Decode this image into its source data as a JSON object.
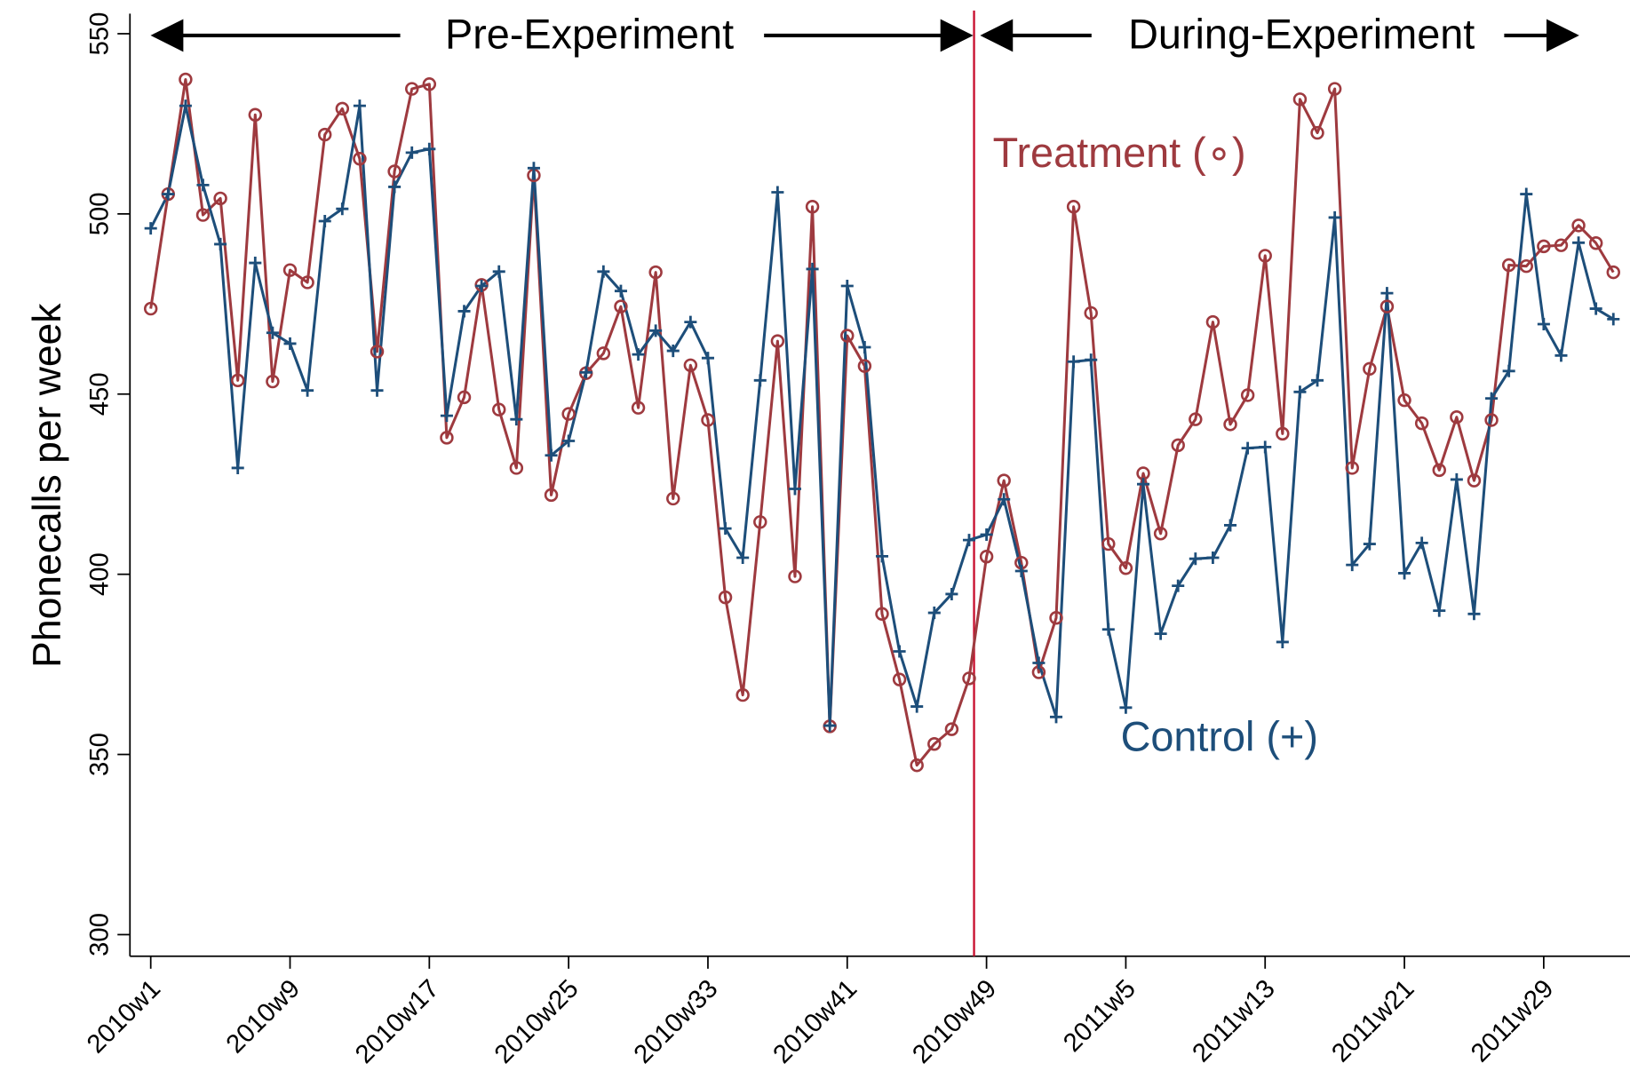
{
  "chart_data": {
    "type": "line",
    "y_label": "Phonecalls per week",
    "annotations": [
      "Pre-Experiment",
      "During-Experiment"
    ],
    "categories": [
      "2010w1",
      null,
      null,
      null,
      null,
      null,
      null,
      null,
      "2010w9",
      null,
      null,
      null,
      null,
      null,
      null,
      null,
      "2010w17",
      null,
      null,
      null,
      null,
      null,
      null,
      null,
      "2010w25",
      null,
      null,
      null,
      null,
      null,
      null,
      null,
      "2010w33",
      null,
      null,
      null,
      null,
      null,
      null,
      null,
      "2010w41",
      null,
      null,
      null,
      null,
      null,
      null,
      null,
      "2010w49",
      null,
      null,
      null,
      null,
      null,
      null,
      null,
      "2011w5",
      null,
      null,
      null,
      null,
      null,
      null,
      null,
      "2011w13",
      null,
      null,
      null,
      null,
      null,
      null,
      null,
      "2011w21",
      null,
      null,
      null,
      null,
      null,
      null,
      null,
      "2011w29",
      null,
      null,
      null,
      null
    ],
    "series": [
      {
        "name": "Treatment (∘)",
        "color": "#9e3a3f",
        "marker": "circle",
        "values": [
          473.7,
          505.5,
          537.3,
          499.7,
          504.3,
          453.8,
          527.5,
          453.5,
          484.4,
          481.0,
          522.0,
          529.2,
          515.3,
          461.8,
          511.8,
          534.7,
          536.0,
          437.9,
          449.1,
          480.3,
          445.7,
          429.5,
          510.7,
          422.0,
          444.5,
          455.8,
          461.3,
          474.3,
          446.2,
          483.8,
          421.0,
          458.0,
          442.8,
          393.6,
          366.5,
          414.5,
          464.7,
          399.4,
          502.0,
          357.8,
          466.2,
          457.8,
          389.0,
          370.8,
          347.0,
          352.9,
          357.0,
          371.1,
          404.9,
          426.0,
          403.2,
          372.8,
          387.9,
          502.0,
          472.5,
          408.4,
          401.7,
          428.0,
          411.3,
          435.8,
          443.0,
          470.0,
          441.6,
          449.7,
          488.4,
          439.0,
          531.8,
          522.5,
          534.7,
          429.5,
          457.0,
          474.3,
          448.3,
          441.9,
          428.9,
          443.6,
          426.0,
          442.8,
          485.8,
          485.5,
          491.0,
          491.3,
          496.8,
          491.9,
          483.8
        ]
      },
      {
        "name": "Control (+)",
        "color": "#1d4e7a",
        "marker": "plus",
        "values": [
          496.0,
          505.5,
          530.0,
          508.0,
          491.6,
          429.5,
          486.4,
          467.0,
          464.0,
          451.0,
          498.0,
          501.4,
          530.0,
          451.0,
          507.5,
          517.0,
          518.0,
          444.0,
          473.0,
          480.0,
          484.0,
          443.0,
          512.7,
          433.0,
          437.0,
          456.0,
          484.0,
          478.6,
          461.0,
          467.6,
          462.0,
          470.0,
          460.0,
          412.7,
          404.6,
          453.8,
          506.0,
          423.7,
          484.7,
          358.0,
          480.0,
          463.0,
          405.0,
          378.6,
          363.3,
          389.3,
          394.5,
          409.5,
          411.0,
          420.8,
          400.9,
          375.4,
          360.4,
          459.0,
          459.5,
          384.7,
          363.0,
          425.0,
          383.5,
          396.8,
          404.3,
          404.6,
          413.6,
          435.0,
          435.3,
          381.2,
          450.6,
          453.8,
          499.0,
          402.6,
          408.4,
          478.0,
          400.3,
          408.7,
          389.9,
          426.3,
          389.0,
          448.8,
          456.4,
          505.5,
          469.4,
          460.7,
          492.0,
          473.7,
          470.8
        ]
      }
    ],
    "ylim": [
      294,
      555
    ],
    "yticks": [
      300,
      350,
      400,
      450,
      500,
      550
    ],
    "grid": false
  }
}
